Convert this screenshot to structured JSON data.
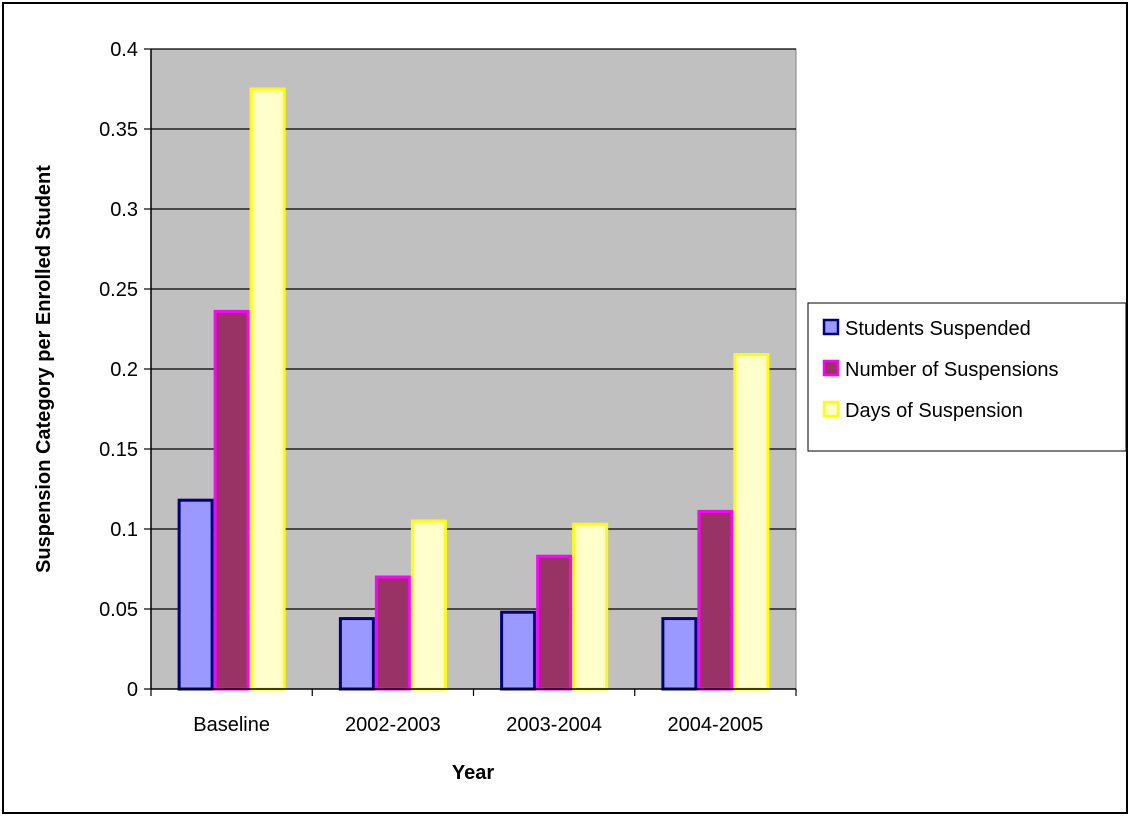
{
  "chart_data": {
    "type": "bar",
    "title": "",
    "xlabel": "Year",
    "ylabel": "Suspension Category per Enrolled Student",
    "categories": [
      "Baseline",
      "2002-2003",
      "2003-2004",
      "2004-2005"
    ],
    "ylim": [
      0,
      0.4
    ],
    "yticks": [
      0,
      0.05,
      0.1,
      0.15,
      0.2,
      0.25,
      0.3,
      0.35,
      0.4
    ],
    "ytick_labels": [
      "0",
      "0.05",
      "0.1",
      "0.15",
      "0.2",
      "0.25",
      "0.3",
      "0.35",
      "0.4"
    ],
    "grid": true,
    "legend_position": "right",
    "plot_background": "#c0c0c0",
    "series": [
      {
        "name": "Students Suspended",
        "values": [
          0.118,
          0.044,
          0.048,
          0.044
        ],
        "fill": "#9999ff",
        "stroke": "#000080"
      },
      {
        "name": "Number of Suspensions",
        "values": [
          0.236,
          0.07,
          0.083,
          0.111
        ],
        "fill": "#993366",
        "stroke": "#ff00ff"
      },
      {
        "name": "Days of Suspension",
        "values": [
          0.375,
          0.105,
          0.103,
          0.209
        ],
        "fill": "#ffffcc",
        "stroke": "#ffff00"
      }
    ]
  }
}
